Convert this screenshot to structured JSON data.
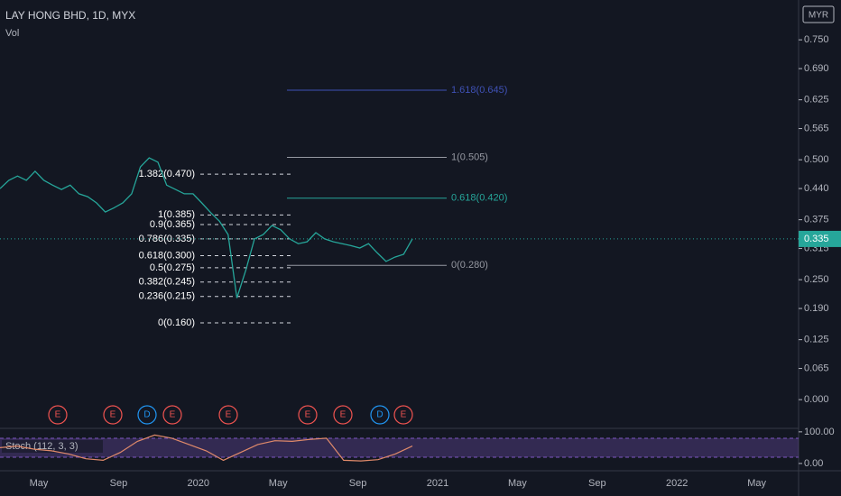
{
  "header": {
    "title": "LAY HONG BHD, 1D, MYX",
    "indicator": "Vol",
    "currency": "MYR"
  },
  "chart_data": {
    "type": "line",
    "ylim": [
      -0.058,
      0.833
    ],
    "yticks": [
      {
        "value": 0.75,
        "label": "0.750"
      },
      {
        "value": 0.69,
        "label": "0.690"
      },
      {
        "value": 0.625,
        "label": "0.625"
      },
      {
        "value": 0.565,
        "label": "0.565"
      },
      {
        "value": 0.5,
        "label": "0.500"
      },
      {
        "value": 0.44,
        "label": "0.440"
      },
      {
        "value": 0.375,
        "label": "0.375"
      },
      {
        "value": 0.315,
        "label": "0.315"
      },
      {
        "value": 0.25,
        "label": "0.250"
      },
      {
        "value": 0.19,
        "label": "0.190"
      },
      {
        "value": 0.125,
        "label": "0.125"
      },
      {
        "value": 0.065,
        "label": "0.065"
      },
      {
        "value": 0,
        "label": "0.000"
      }
    ],
    "current_price": {
      "value": 0.335,
      "label": "0.335"
    },
    "color": "#26a69a",
    "values": [
      0.44,
      0.457,
      0.466,
      0.457,
      0.476,
      0.457,
      0.447,
      0.438,
      0.447,
      0.429,
      0.423,
      0.41,
      0.391,
      0.4,
      0.41,
      0.429,
      0.485,
      0.504,
      0.495,
      0.447,
      0.438,
      0.429,
      0.429,
      0.41,
      0.39,
      0.372,
      0.344,
      0.212,
      0.269,
      0.335,
      0.344,
      0.363,
      0.354,
      0.335,
      0.325,
      0.329,
      0.348,
      0.335,
      0.329,
      0.325,
      0.321,
      0.316,
      0.325,
      0.306,
      0.288,
      0.297,
      0.303,
      0.335
    ],
    "x_labels": [
      "May",
      "Sep",
      "2020",
      "May",
      "Sep",
      "2021",
      "May",
      "Sep",
      "2022",
      "May"
    ],
    "fib_left": [
      {
        "label": "1.382(0.470)",
        "price": 0.47
      },
      {
        "label": "1(0.385)",
        "price": 0.385
      },
      {
        "label": "0.9(0.365)",
        "price": 0.365
      },
      {
        "label": "0.786(0.335)",
        "price": 0.335
      },
      {
        "label": "0.618(0.300)",
        "price": 0.3
      },
      {
        "label": "0.5(0.275)",
        "price": 0.275
      },
      {
        "label": "0.382(0.245)",
        "price": 0.245
      },
      {
        "label": "0.236(0.215)",
        "price": 0.215
      },
      {
        "label": "0(0.160)",
        "price": 0.16
      }
    ],
    "fib_right": [
      {
        "label": "1.618(0.645)",
        "price": 0.645,
        "color": "#3f51b5"
      },
      {
        "label": "1(0.505)",
        "price": 0.505,
        "color": "#9598a1"
      },
      {
        "label": "0.618(0.420)",
        "price": 0.42,
        "color": "#26a69a"
      },
      {
        "label": "0(0.280)",
        "price": 0.28,
        "color": "#9598a1"
      }
    ],
    "events": [
      "E",
      "E",
      "D",
      "E",
      "E",
      "E",
      "E",
      "D",
      "E"
    ]
  },
  "stoch": {
    "label": "Stoch (112, 3, 3)",
    "ylim": [
      -23,
      111
    ],
    "yticks": [
      {
        "value": 100,
        "label": "100.00"
      },
      {
        "value": 0,
        "label": "0.00"
      }
    ],
    "color": "#e08a6a",
    "values": [
      50,
      55,
      45,
      40,
      30,
      15,
      10,
      35,
      70,
      90,
      80,
      60,
      40,
      10,
      35,
      60,
      72,
      70,
      76,
      80,
      10,
      8,
      12,
      30,
      55
    ]
  }
}
